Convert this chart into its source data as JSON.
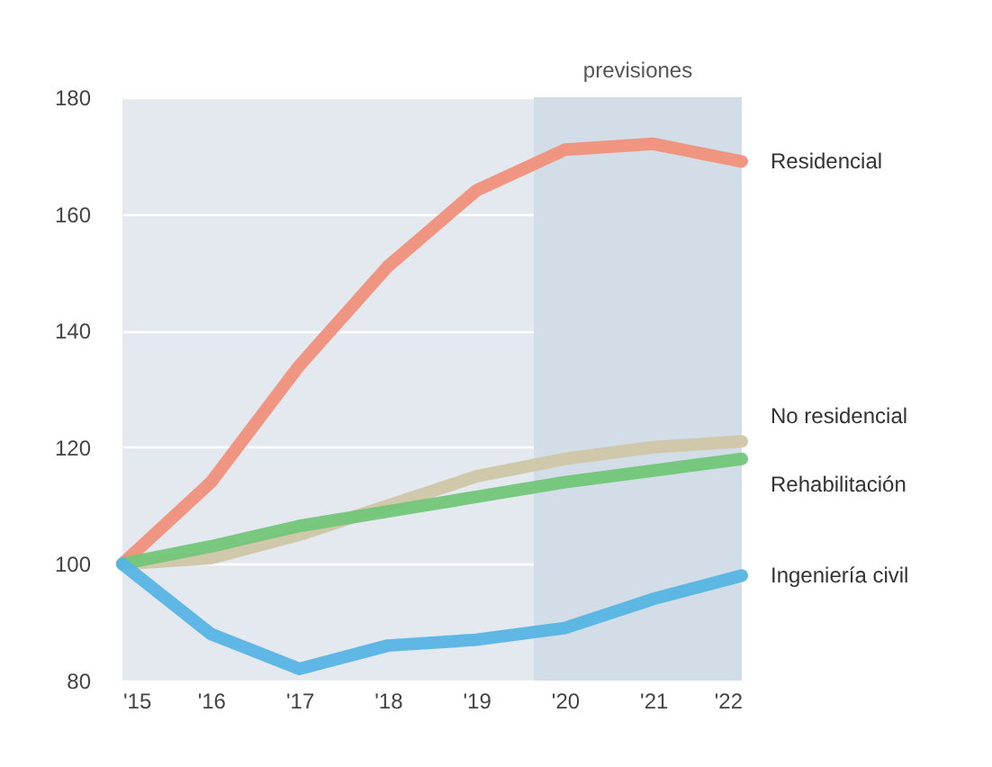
{
  "chart_data": {
    "type": "line",
    "x": [
      2015,
      2016,
      2017,
      2018,
      2019,
      2020,
      2021,
      2022
    ],
    "series": [
      {
        "name": "Residencial",
        "color": "#f0907a",
        "values": [
          100,
          114,
          134,
          151,
          164,
          171,
          172,
          169
        ]
      },
      {
        "name": "No residencial",
        "color": "#cfc6a6",
        "values": [
          100,
          101,
          105,
          110,
          115,
          118,
          120,
          121
        ]
      },
      {
        "name": "Rehabilitación",
        "color": "#72c679",
        "values": [
          100,
          103,
          106.5,
          109,
          111.5,
          114,
          116,
          118
        ]
      },
      {
        "name": "Ingeniería civil",
        "color": "#56b4e3",
        "values": [
          100,
          88,
          82,
          86,
          87,
          89,
          94,
          98
        ]
      }
    ],
    "xlim": [
      2015,
      2022
    ],
    "ylim": [
      80,
      180
    ],
    "xticks": [
      {
        "value": 2015,
        "label": "'15"
      },
      {
        "value": 2016,
        "label": "'16"
      },
      {
        "value": 2017,
        "label": "'17"
      },
      {
        "value": 2018,
        "label": "'18"
      },
      {
        "value": 2019,
        "label": "'19"
      },
      {
        "value": 2020,
        "label": "'20"
      },
      {
        "value": 2021,
        "label": "'21"
      },
      {
        "value": 2022,
        "label": "'22"
      }
    ],
    "yticks": [
      80,
      100,
      120,
      140,
      160,
      180
    ],
    "bands": [
      {
        "axis": "x",
        "from": 2019.65,
        "to": 2022,
        "label": "previsiones",
        "color": "#d3dde8"
      }
    ],
    "grid": "y",
    "line_style": "solid"
  }
}
